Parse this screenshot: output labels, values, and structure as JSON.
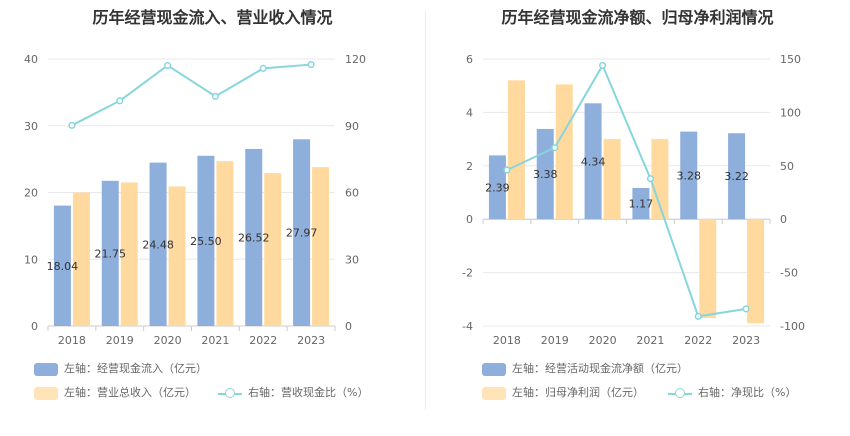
{
  "colors": {
    "primary_bar": "#8eaedb",
    "secondary_bar": "#ffd99e",
    "line": "#86d6dc",
    "grid": "#e8e8e8"
  },
  "chart_data": [
    {
      "type": "bar",
      "title": "历年经营现金流入、营业收入情况",
      "categories": [
        "2018",
        "2019",
        "2020",
        "2021",
        "2022",
        "2023"
      ],
      "y_left": {
        "ticks": [
          0,
          10,
          20,
          30,
          40
        ],
        "range": [
          0,
          40
        ]
      },
      "y_right": {
        "ticks": [
          0,
          30,
          60,
          90,
          120
        ],
        "range": [
          0,
          120
        ]
      },
      "series": [
        {
          "name": "左轴：经营现金流入（亿元）",
          "type": "bar",
          "axis": "left",
          "values": [
            18.04,
            21.75,
            24.48,
            25.5,
            26.52,
            27.97
          ],
          "labels": [
            "18.04",
            "21.75",
            "24.48",
            "25.50",
            "26.52",
            "27.97"
          ]
        },
        {
          "name": "左轴：营业总收入（亿元）",
          "type": "bar",
          "axis": "left",
          "values": [
            20.0,
            21.5,
            20.9,
            24.7,
            22.9,
            23.8
          ]
        },
        {
          "name": "右轴：营收现金比（%）",
          "type": "line",
          "axis": "right",
          "values": [
            90.2,
            101.2,
            117.1,
            103.2,
            115.8,
            117.5
          ]
        }
      ],
      "legend": [
        "左轴：经营现金流入（亿元）",
        "左轴：营业总收入（亿元）",
        "右轴：营收现金比（%）"
      ]
    },
    {
      "type": "bar",
      "title": "历年经营现金流净额、归母净利润情况",
      "categories": [
        "2018",
        "2019",
        "2020",
        "2021",
        "2022",
        "2023"
      ],
      "y_left": {
        "ticks": [
          -4,
          -2,
          0,
          2,
          4,
          6
        ],
        "range": [
          -4,
          6
        ]
      },
      "y_right": {
        "ticks": [
          -100,
          -50,
          0,
          50,
          100,
          150
        ],
        "range": [
          -100,
          150
        ]
      },
      "series": [
        {
          "name": "左轴：经营活动现金流净额（亿元）",
          "type": "bar",
          "axis": "left",
          "values": [
            2.39,
            3.38,
            4.34,
            1.17,
            3.28,
            3.22
          ],
          "labels": [
            "2.39",
            "3.38",
            "4.34",
            "1.17",
            "3.28",
            "3.22"
          ]
        },
        {
          "name": "左轴：归母净利润（亿元）",
          "type": "bar",
          "axis": "left",
          "values": [
            5.2,
            5.05,
            3.0,
            3.0,
            -3.7,
            -3.9
          ]
        },
        {
          "name": "右轴：净现比（%）",
          "type": "line",
          "axis": "right",
          "values": [
            46,
            67,
            144,
            38,
            -91,
            -84
          ]
        }
      ],
      "legend": [
        "左轴：经营活动现金流净额（亿元）",
        "左轴：归母净利润（亿元）",
        "右轴：净现比（%）"
      ]
    }
  ]
}
